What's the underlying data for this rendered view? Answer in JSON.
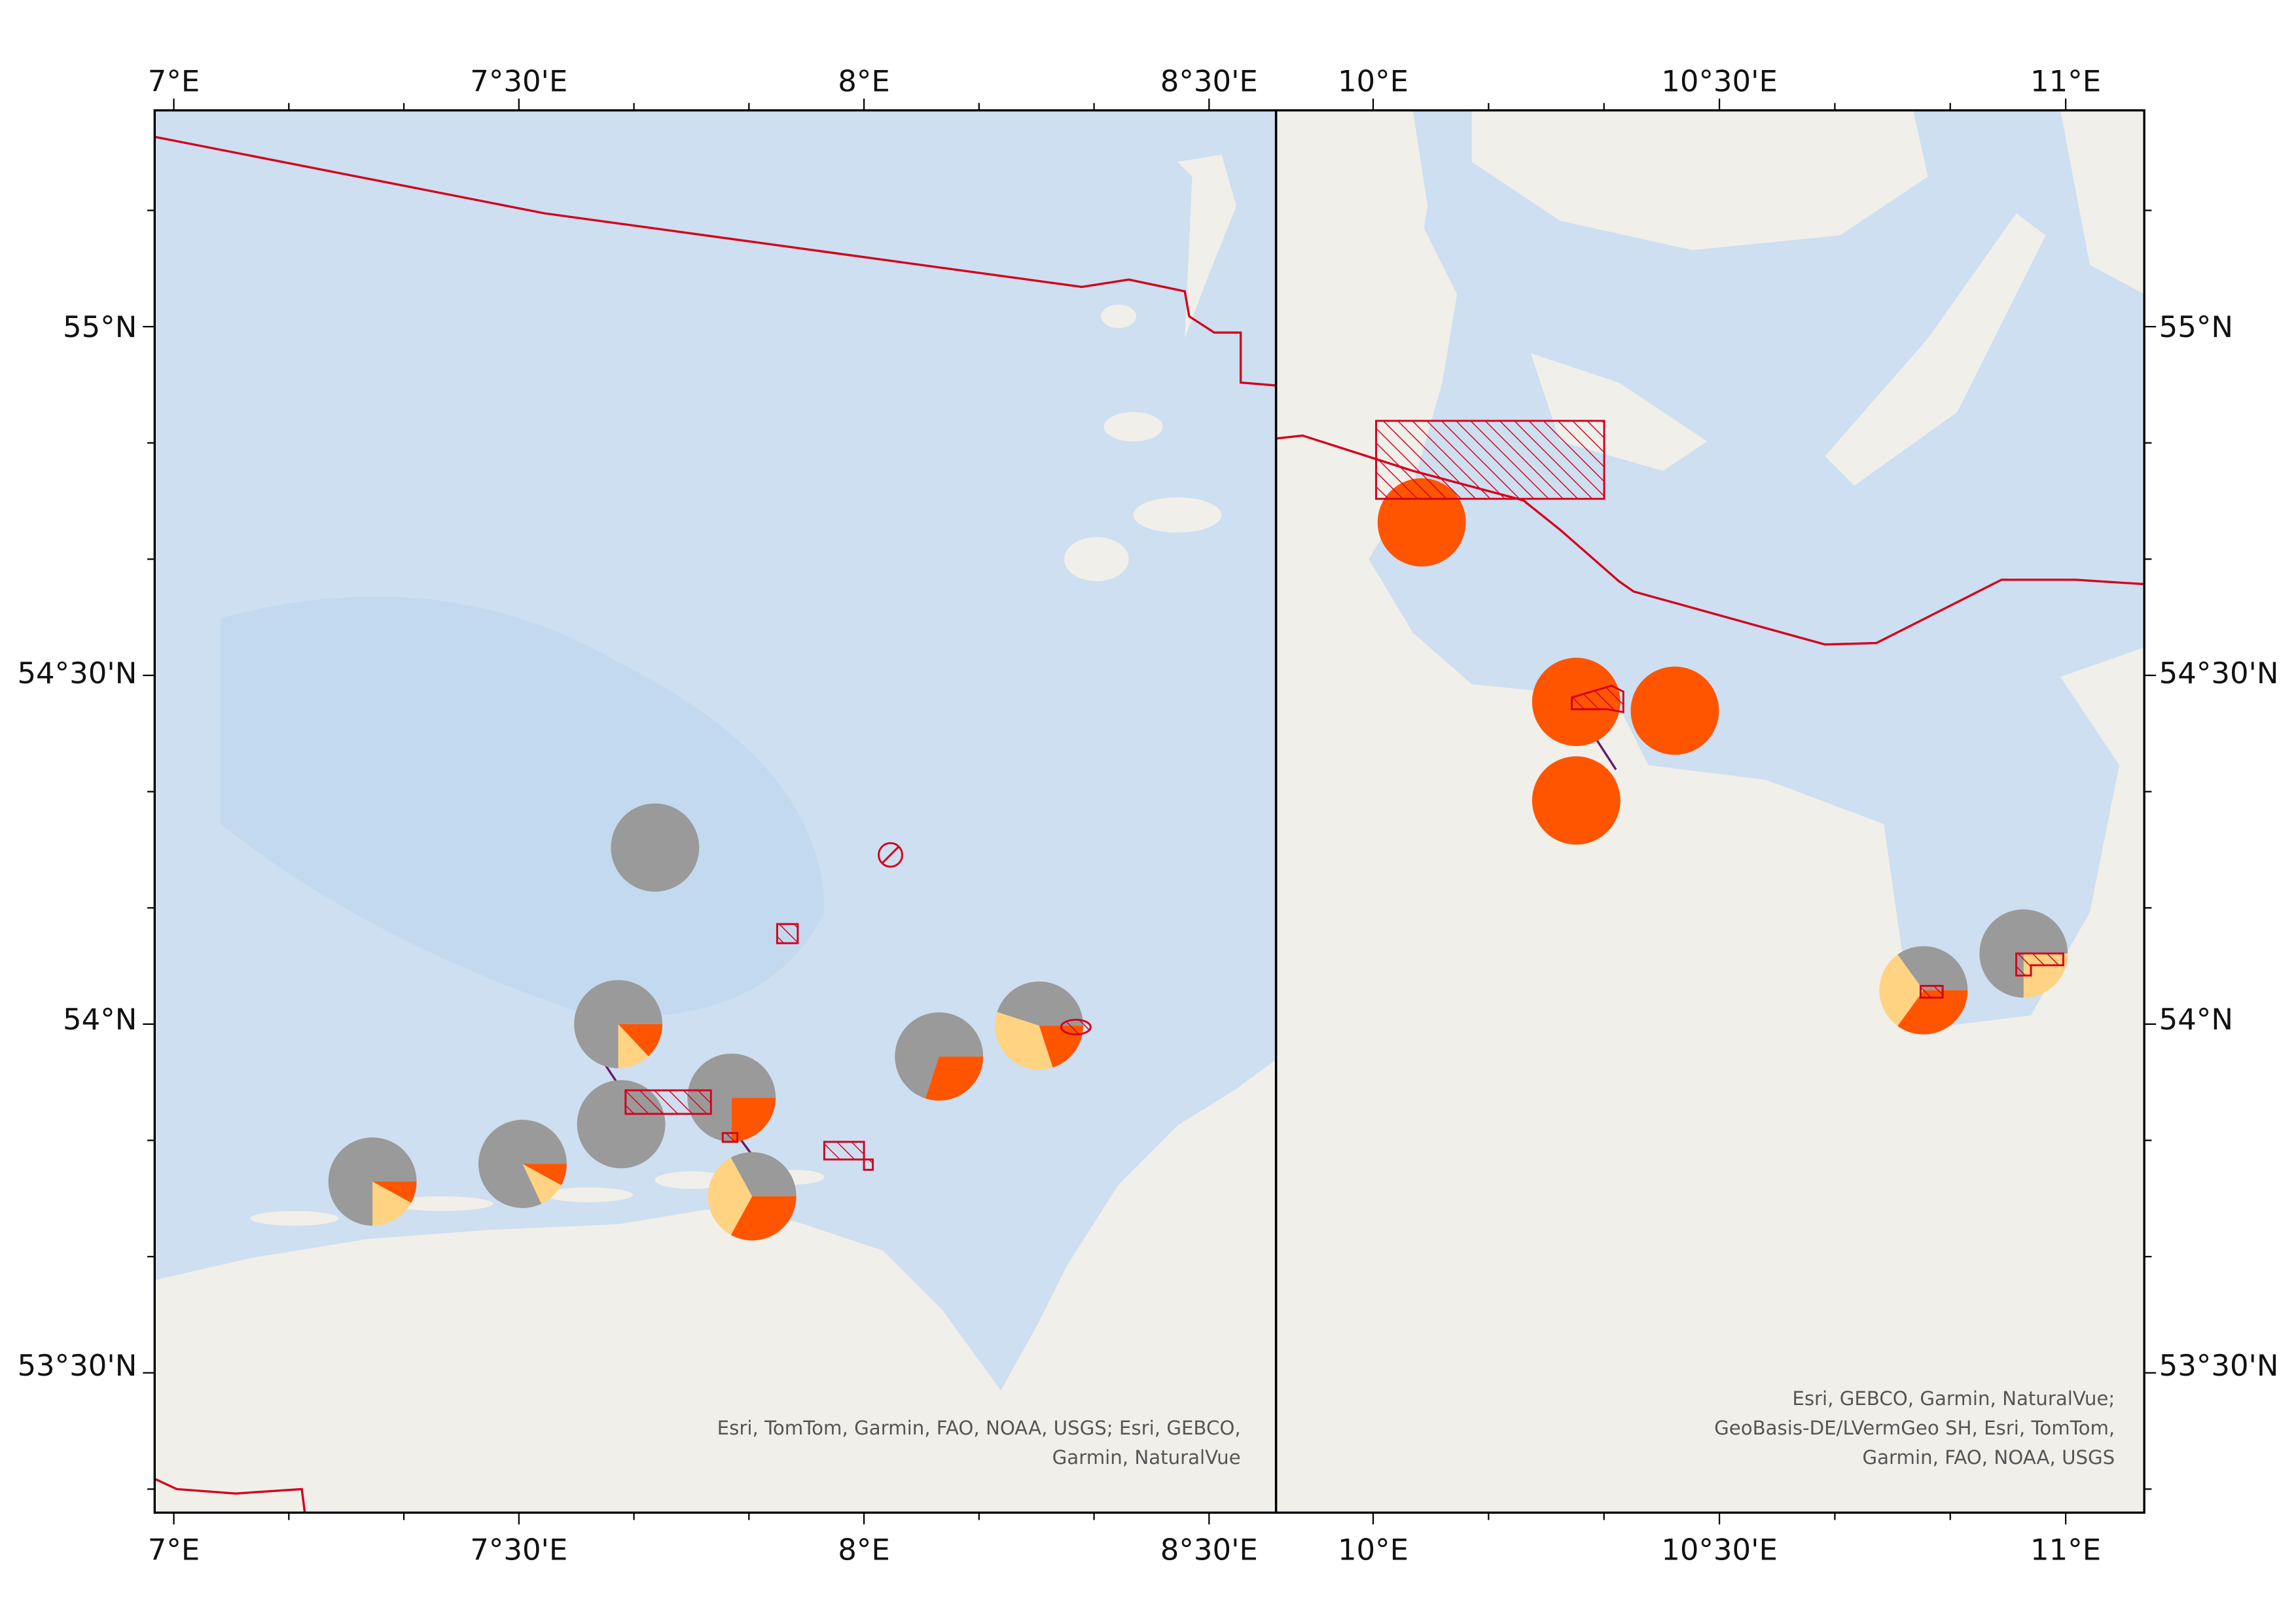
{
  "frame_left": {
    "x_ticks": [
      "7°E",
      "7°30'E",
      "8°E",
      "8°30'E"
    ],
    "attribution": [
      "Esri, TomTom, Garmin, FAO, NOAA, USGS; Esri, GEBCO,",
      "Garmin, NaturalVue"
    ]
  },
  "frame_right": {
    "x_ticks": [
      "10°E",
      "10°30'E",
      "11°E"
    ],
    "attribution": [
      "Esri, GEBCO, Garmin, NaturalVue;",
      "GeoBasis-DE/LVermGeo SH, Esri, TomTom,",
      "Garmin, FAO, NOAA, USGS"
    ]
  },
  "y_ticks": [
    "55°N",
    "54°30'N",
    "54°N",
    "53°30'N"
  ],
  "pie_colors": [
    "#9a9a9a",
    "#ff5500",
    "#ffd382"
  ],
  "pies": [
    {
      "values": [
        100,
        0,
        0
      ]
    },
    {
      "values": [
        75,
        13,
        12
      ]
    },
    {
      "values": [
        100,
        0,
        0
      ]
    },
    {
      "values": [
        75,
        25,
        0
      ]
    },
    {
      "values": [
        70,
        30,
        0
      ]
    },
    {
      "values": [
        45,
        20,
        35
      ]
    },
    {
      "values": [
        75,
        8,
        17
      ]
    },
    {
      "values": [
        82,
        8,
        10
      ]
    },
    {
      "values": [
        33,
        33,
        34
      ]
    },
    {
      "values": [
        0,
        100,
        0
      ]
    },
    {
      "values": [
        0,
        100,
        0
      ]
    },
    {
      "values": [
        0,
        100,
        0
      ]
    },
    {
      "values": [
        0,
        100,
        0
      ]
    },
    {
      "values": [
        35,
        35,
        30
      ]
    },
    {
      "values": [
        75,
        0,
        25
      ]
    }
  ]
}
